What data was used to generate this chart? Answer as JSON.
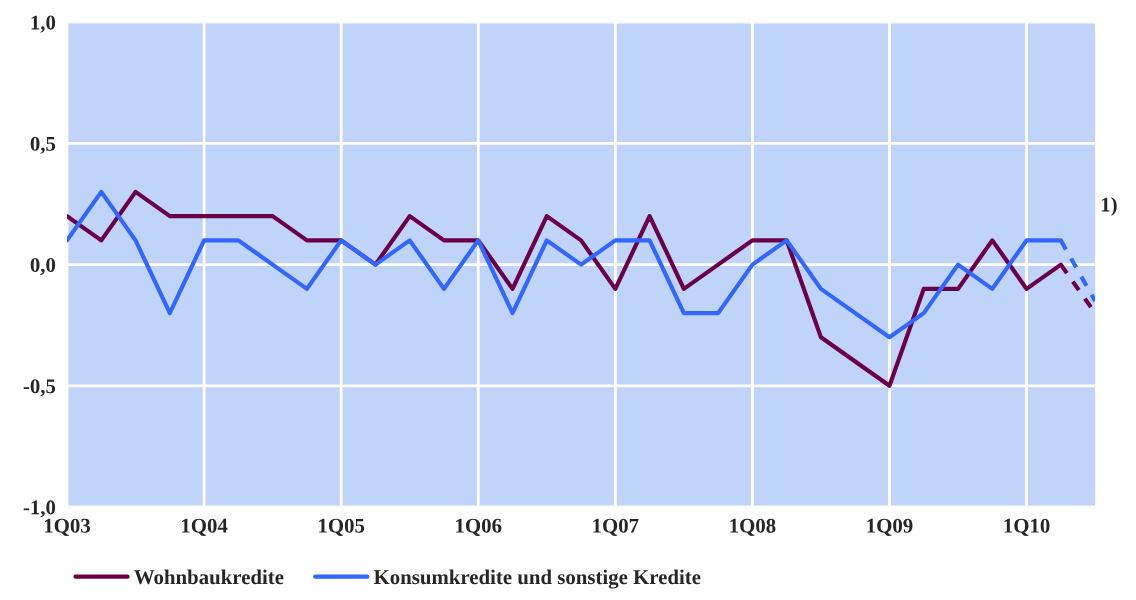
{
  "chart_data": {
    "type": "line",
    "categories": [
      "1Q03",
      null,
      null,
      null,
      "1Q04",
      null,
      null,
      null,
      "1Q05",
      null,
      null,
      null,
      "1Q06",
      null,
      null,
      null,
      "1Q07",
      null,
      null,
      null,
      "1Q08",
      null,
      null,
      null,
      "1Q09",
      null,
      null,
      null,
      "1Q10",
      null,
      null
    ],
    "ylim": [
      -1,
      1
    ],
    "yticks": [
      {
        "value": -1,
        "label": "-1,0"
      },
      {
        "value": -0.5,
        "label": "-0,5"
      },
      {
        "value": 0,
        "label": "0,0"
      },
      {
        "value": 0.5,
        "label": "0,5"
      },
      {
        "value": 1,
        "label": "1,0"
      }
    ],
    "series": [
      {
        "name": "Wohnbaukredite",
        "color": "#6b0048",
        "line_style": "solid",
        "values": [
          0.2,
          0.1,
          0.3,
          0.2,
          0.2,
          0.2,
          0.2,
          0.1,
          0.1,
          0.0,
          0.2,
          0.1,
          0.1,
          -0.1,
          0.2,
          0.1,
          -0.1,
          0.2,
          -0.1,
          0.0,
          0.1,
          0.1,
          -0.3,
          -0.4,
          -0.5,
          -0.1,
          -0.1,
          0.1,
          -0.1,
          0.0,
          null
        ]
      },
      {
        "name": "Konsumkredite und sonstige Kredite",
        "color": "#3366ff",
        "line_style": "solid",
        "values": [
          0.1,
          0.3,
          0.1,
          -0.2,
          0.1,
          0.1,
          0.0,
          -0.1,
          0.1,
          0.0,
          0.1,
          -0.1,
          0.1,
          -0.2,
          0.1,
          0.0,
          0.1,
          0.1,
          -0.2,
          -0.2,
          0.0,
          0.1,
          -0.1,
          -0.2,
          -0.3,
          -0.2,
          0.0,
          -0.1,
          0.1,
          0.1,
          null
        ]
      },
      {
        "color": "#6b0048",
        "line_style": "dashed",
        "values": [
          null,
          null,
          null,
          null,
          null,
          null,
          null,
          null,
          null,
          null,
          null,
          null,
          null,
          null,
          null,
          null,
          null,
          null,
          null,
          null,
          null,
          null,
          null,
          null,
          null,
          null,
          null,
          null,
          null,
          0.0,
          -0.2
        ]
      },
      {
        "color": "#3366ff",
        "line_style": "dashed",
        "values": [
          null,
          null,
          null,
          null,
          null,
          null,
          null,
          null,
          null,
          null,
          null,
          null,
          null,
          null,
          null,
          null,
          null,
          null,
          null,
          null,
          null,
          null,
          null,
          null,
          null,
          null,
          null,
          null,
          null,
          0.1,
          -0.15
        ]
      }
    ],
    "annotations": [
      "1)"
    ],
    "grid": true,
    "legend": "bottom left"
  }
}
